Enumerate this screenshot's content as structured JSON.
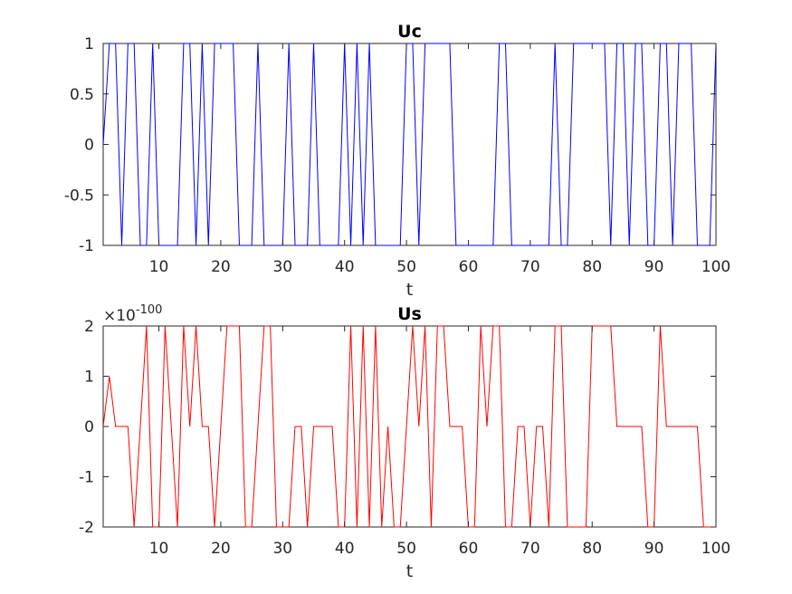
{
  "chart_data": [
    {
      "type": "line",
      "title": "Uc",
      "xlabel": "t",
      "ylabel": "",
      "xlim": [
        1,
        100
      ],
      "ylim": [
        -1,
        1
      ],
      "xticks": [
        10,
        20,
        30,
        40,
        50,
        60,
        70,
        80,
        90,
        100
      ],
      "xtick_labels": [
        "10",
        "20",
        "30",
        "40",
        "50",
        "60",
        "70",
        "80",
        "90",
        "100"
      ],
      "yticks": [
        -1,
        -0.5,
        0,
        0.5,
        1
      ],
      "ytick_labels": [
        "-1",
        "-0.5",
        "0",
        "0.5",
        "1"
      ],
      "exponent_label": "",
      "grid": false,
      "series": [
        {
          "color": "#0000ff",
          "x": [
            1,
            2,
            3,
            4,
            5,
            6,
            7,
            8,
            9,
            10,
            11,
            12,
            13,
            14,
            15,
            16,
            17,
            18,
            19,
            20,
            21,
            22,
            23,
            24,
            25,
            26,
            27,
            28,
            29,
            30,
            31,
            32,
            33,
            34,
            35,
            36,
            37,
            38,
            39,
            40,
            41,
            42,
            43,
            44,
            45,
            46,
            47,
            48,
            49,
            50,
            51,
            52,
            53,
            54,
            55,
            56,
            57,
            58,
            59,
            60,
            61,
            62,
            63,
            64,
            65,
            66,
            67,
            68,
            69,
            70,
            71,
            72,
            73,
            74,
            75,
            76,
            77,
            78,
            79,
            80,
            81,
            82,
            83,
            84,
            85,
            86,
            87,
            88,
            89,
            90,
            91,
            92,
            93,
            94,
            95,
            96,
            97,
            98,
            99,
            100
          ],
          "values": [
            0,
            1,
            1,
            -1,
            1,
            1,
            -1,
            -1,
            1,
            -1,
            -1,
            -1,
            -1,
            1,
            1,
            -1,
            1,
            -1,
            1,
            1,
            1,
            1,
            -1,
            -1,
            -1,
            1,
            -1,
            -1,
            -1,
            -1,
            1,
            -1,
            -1,
            -1,
            1,
            -1,
            -1,
            -1,
            -1,
            1,
            -1,
            1,
            -1,
            1,
            -1,
            -1,
            -1,
            -1,
            -1,
            1,
            1,
            -1,
            1,
            1,
            1,
            1,
            1,
            -1,
            -1,
            -1,
            -1,
            -1,
            -1,
            -1,
            1,
            1,
            -1,
            -1,
            -1,
            -1,
            -1,
            -1,
            -1,
            1,
            -1,
            -1,
            1,
            1,
            1,
            1,
            1,
            1,
            -1,
            1,
            1,
            -1,
            1,
            1,
            -1,
            -1,
            1,
            1,
            -1,
            1,
            1,
            1,
            -1,
            -1,
            -1,
            1
          ]
        }
      ]
    },
    {
      "type": "line",
      "title": "Us",
      "xlabel": "t",
      "ylabel": "",
      "xlim": [
        1,
        100
      ],
      "ylim": [
        -2,
        2
      ],
      "xticks": [
        10,
        20,
        30,
        40,
        50,
        60,
        70,
        80,
        90,
        100
      ],
      "xtick_labels": [
        "10",
        "20",
        "30",
        "40",
        "50",
        "60",
        "70",
        "80",
        "90",
        "100"
      ],
      "yticks": [
        -2,
        -1,
        0,
        1,
        2
      ],
      "ytick_labels": [
        "-2",
        "-1",
        "0",
        "1",
        "2"
      ],
      "exponent_label": "×10",
      "exponent_power": "-100",
      "grid": false,
      "series": [
        {
          "color": "#ff0000",
          "x": [
            1,
            2,
            3,
            4,
            5,
            6,
            7,
            8,
            9,
            10,
            11,
            12,
            13,
            14,
            15,
            16,
            17,
            18,
            19,
            20,
            21,
            22,
            23,
            24,
            25,
            26,
            27,
            28,
            29,
            30,
            31,
            32,
            33,
            34,
            35,
            36,
            37,
            38,
            39,
            40,
            41,
            42,
            43,
            44,
            45,
            46,
            47,
            48,
            49,
            50,
            51,
            52,
            53,
            54,
            55,
            56,
            57,
            58,
            59,
            60,
            61,
            62,
            63,
            64,
            65,
            66,
            67,
            68,
            69,
            70,
            71,
            72,
            73,
            74,
            75,
            76,
            77,
            78,
            79,
            80,
            81,
            82,
            83,
            84,
            85,
            86,
            87,
            88,
            89,
            90,
            91,
            92,
            93,
            94,
            95,
            96,
            97,
            98,
            99,
            100
          ],
          "values": [
            0,
            1,
            0,
            0,
            0,
            -2,
            0,
            2,
            -2,
            -2,
            2,
            0,
            -2,
            2,
            0,
            2,
            0,
            0,
            -2,
            0,
            2,
            2,
            2,
            -2,
            -2,
            0,
            2,
            2,
            -2,
            -2,
            -2,
            0,
            0,
            -2,
            0,
            0,
            0,
            0,
            -2,
            -2,
            2,
            -2,
            2,
            -2,
            2,
            -2,
            0,
            -2,
            -2,
            0,
            2,
            0,
            2,
            -2,
            2,
            2,
            0,
            0,
            0,
            -2,
            -2,
            2,
            0,
            2,
            2,
            -2,
            -2,
            0,
            0,
            -2,
            0,
            0,
            -2,
            2,
            2,
            -2,
            -2,
            -2,
            -2,
            2,
            2,
            2,
            2,
            0,
            0,
            0,
            0,
            0,
            -2,
            -2,
            2,
            0,
            0,
            0,
            0,
            0,
            0,
            -2,
            -2,
            -2
          ]
        }
      ]
    }
  ]
}
